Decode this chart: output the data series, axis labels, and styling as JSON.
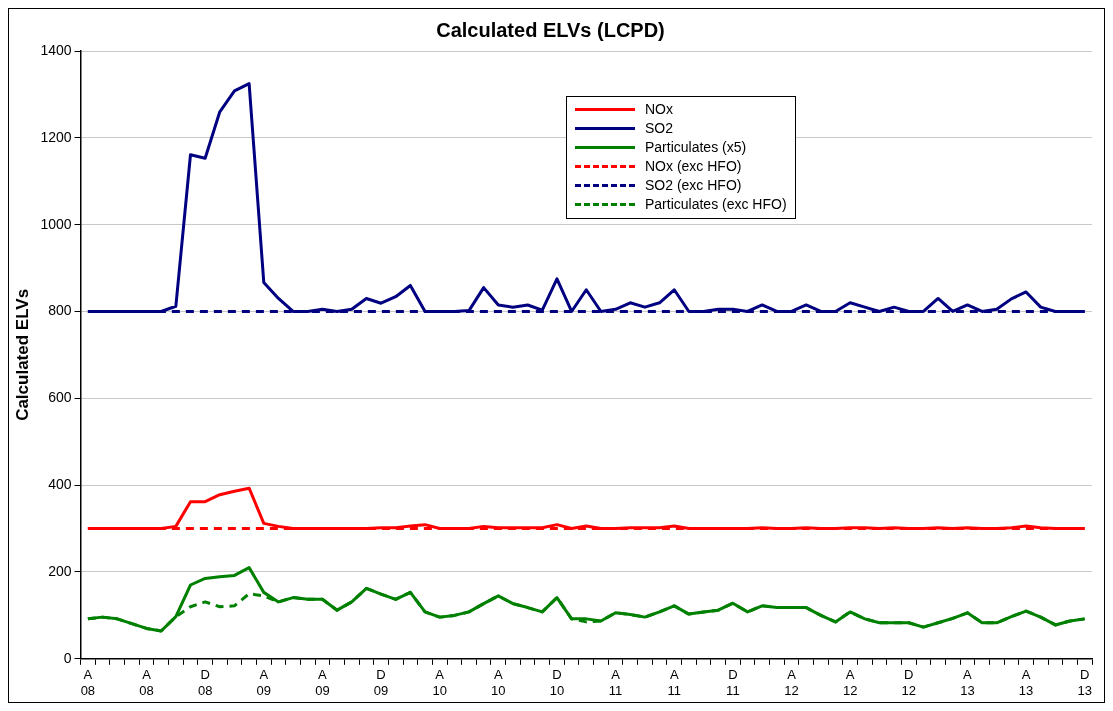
{
  "chart_data": {
    "type": "line",
    "title": "Calculated ELVs (LCPD)",
    "ylabel": "Calculated ELVs",
    "categories": [
      "A\n08",
      null,
      null,
      null,
      "A\n08",
      null,
      null,
      null,
      "D\n08",
      null,
      null,
      null,
      "A\n09",
      null,
      null,
      null,
      "A\n09",
      null,
      null,
      null,
      "D\n09",
      null,
      null,
      null,
      "A\n10",
      null,
      null,
      null,
      "A\n10",
      null,
      null,
      null,
      "D\n10",
      null,
      null,
      null,
      "A\n11",
      null,
      null,
      null,
      "A\n11",
      null,
      null,
      null,
      "D\n11",
      null,
      null,
      null,
      "A\n12",
      null,
      null,
      null,
      "A\n12",
      null,
      null,
      null,
      "D\n12",
      null,
      null,
      null,
      "A\n13",
      null,
      null,
      null,
      "A\n13",
      null,
      null,
      null,
      "D\n13"
    ],
    "ylim": [
      0,
      1400
    ],
    "yticks": [
      0,
      200,
      400,
      600,
      800,
      1000,
      1200,
      1400
    ],
    "grid": "y",
    "legend": "top right",
    "marker": "none",
    "series": [
      {
        "name": "NOx",
        "color": "#ff0000",
        "line_style": "solid",
        "values": [
          300,
          300,
          300,
          300,
          300,
          300,
          305,
          362,
          362,
          378,
          386,
          393,
          312,
          305,
          300,
          300,
          300,
          300,
          300,
          300,
          302,
          302,
          306,
          309,
          300,
          300,
          300,
          305,
          302,
          302,
          302,
          302,
          309,
          300,
          306,
          300,
          300,
          302,
          302,
          302,
          306,
          300,
          300,
          300,
          300,
          300,
          302,
          300,
          300,
          302,
          300,
          300,
          302,
          302,
          300,
          302,
          300,
          300,
          302,
          300,
          302,
          300,
          300,
          302,
          306,
          302,
          300,
          300,
          300
        ]
      },
      {
        "name": "SO2",
        "color": "#000080",
        "line_style": "solid",
        "values": [
          800,
          800,
          800,
          800,
          800,
          800,
          812,
          1161,
          1153,
          1260,
          1308,
          1325,
          867,
          830,
          800,
          800,
          805,
          800,
          805,
          830,
          819,
          834,
          860,
          800,
          800,
          800,
          802,
          855,
          815,
          810,
          815,
          803,
          875,
          800,
          850,
          800,
          805,
          820,
          810,
          820,
          850,
          800,
          800,
          805,
          805,
          800,
          815,
          800,
          800,
          815,
          800,
          800,
          820,
          810,
          800,
          810,
          800,
          800,
          830,
          800,
          815,
          800,
          805,
          829,
          845,
          810,
          800,
          800,
          800
        ]
      },
      {
        "name": "Particulates (x5)",
        "color": "#008000",
        "line_style": "solid",
        "values": [
          92,
          96,
          92,
          81,
          70,
          64,
          97,
          170,
          185,
          189,
          192,
          210,
          153,
          131,
          141,
          137,
          137,
          112,
          131,
          162,
          149,
          137,
          153,
          108,
          96,
          100,
          108,
          127,
          145,
          127,
          118,
          108,
          141,
          92,
          92,
          87,
          106,
          102,
          96,
          108,
          122,
          103,
          108,
          112,
          128,
          108,
          122,
          118,
          118,
          118,
          100,
          85,
          108,
          92,
          83,
          83,
          83,
          73,
          83,
          93,
          106,
          83,
          83,
          97,
          110,
          96,
          78,
          87,
          92
        ]
      },
      {
        "name": "NOx (exc HFO)",
        "color": "#ff0000",
        "line_style": "dashed",
        "values": [
          300,
          300,
          300,
          300,
          300,
          300,
          300,
          300,
          300,
          300,
          300,
          300,
          300,
          300,
          300,
          300,
          300,
          300,
          300,
          300,
          300,
          300,
          300,
          300,
          300,
          300,
          300,
          300,
          300,
          300,
          300,
          300,
          300,
          300,
          300,
          300,
          300,
          300,
          300,
          300,
          300,
          300,
          300,
          300,
          300,
          300,
          300,
          300,
          300,
          300,
          300,
          300,
          300,
          300,
          300,
          300,
          300,
          300,
          300,
          300,
          300,
          300,
          300,
          300,
          300,
          300,
          300,
          300,
          300
        ]
      },
      {
        "name": "SO2 (exc HFO)",
        "color": "#000080",
        "line_style": "dashed",
        "values": [
          800,
          800,
          800,
          800,
          800,
          800,
          800,
          800,
          800,
          800,
          800,
          800,
          800,
          800,
          800,
          800,
          800,
          800,
          800,
          800,
          800,
          800,
          800,
          800,
          800,
          800,
          800,
          800,
          800,
          800,
          800,
          800,
          800,
          800,
          800,
          800,
          800,
          800,
          800,
          800,
          800,
          800,
          800,
          800,
          800,
          800,
          800,
          800,
          800,
          800,
          800,
          800,
          800,
          800,
          800,
          800,
          800,
          800,
          800,
          800,
          800,
          800,
          800,
          800,
          800,
          800,
          800,
          800,
          800
        ]
      },
      {
        "name": "Particulates (exc HFO)",
        "color": "#008000",
        "line_style": "dashed",
        "values": [
          92,
          96,
          92,
          81,
          70,
          64,
          97,
          120,
          131,
          120,
          122,
          150,
          145,
          131,
          141,
          137,
          137,
          112,
          131,
          162,
          149,
          137,
          153,
          108,
          96,
          100,
          108,
          127,
          145,
          127,
          118,
          108,
          141,
          92,
          85,
          87,
          106,
          102,
          96,
          108,
          122,
          103,
          108,
          112,
          128,
          108,
          122,
          118,
          118,
          118,
          100,
          85,
          108,
          92,
          83,
          83,
          83,
          73,
          83,
          93,
          106,
          83,
          83,
          97,
          110,
          96,
          78,
          87,
          92
        ]
      }
    ]
  }
}
